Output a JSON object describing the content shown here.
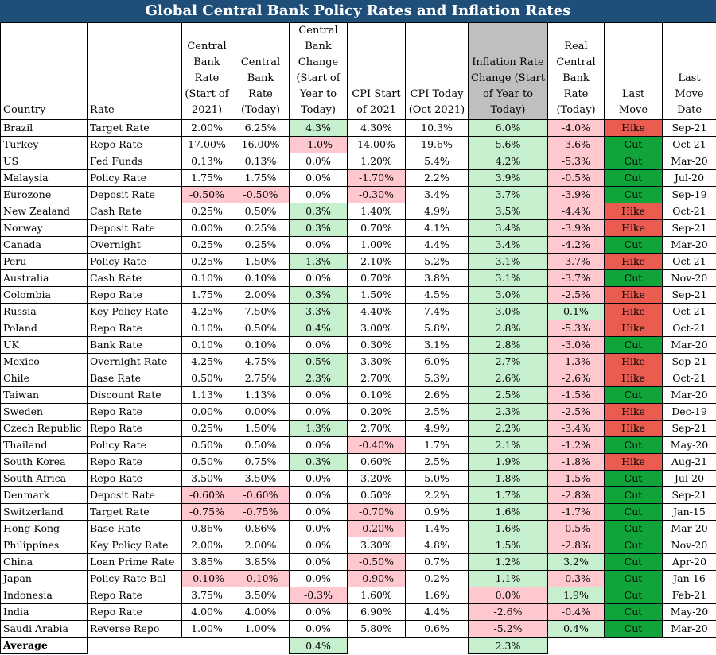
{
  "title": "Global Central Bank Policy Rates and Inflation Rates",
  "headers": [
    "Country",
    "Rate",
    "Central Bank Rate (Start of 2021)",
    "Central Bank Rate (Today)",
    "Central Bank Change (Start of Year to Today)",
    "CPI Start of 2021",
    "CPI Today (Oct 2021)",
    "Inflation Rate Change (Start of Year to Today)",
    "Real Central Bank Rate (Today)",
    "Last Move",
    "Last Move Date"
  ],
  "rows": [
    [
      "Brazil",
      "Target Rate",
      "2.00%",
      "6.25%",
      "4.3%",
      "4.30%",
      "10.3%",
      "6.0%",
      "-4.0%",
      "Hike",
      "Sep-21"
    ],
    [
      "Turkey",
      "Repo Rate",
      "17.00%",
      "16.00%",
      "-1.0%",
      "14.00%",
      "19.6%",
      "5.6%",
      "-3.6%",
      "Cut",
      "Oct-21"
    ],
    [
      "US",
      "Fed Funds",
      "0.13%",
      "0.13%",
      "0.0%",
      "1.20%",
      "5.4%",
      "4.2%",
      "-5.3%",
      "Cut",
      "Mar-20"
    ],
    [
      "Malaysia",
      "Policy Rate",
      "1.75%",
      "1.75%",
      "0.0%",
      "-1.70%",
      "2.2%",
      "3.9%",
      "-0.5%",
      "Cut",
      "Jul-20"
    ],
    [
      "Eurozone",
      "Deposit Rate",
      "-0.50%",
      "-0.50%",
      "0.0%",
      "-0.30%",
      "3.4%",
      "3.7%",
      "-3.9%",
      "Cut",
      "Sep-19"
    ],
    [
      "New Zealand",
      "Cash Rate",
      "0.25%",
      "0.50%",
      "0.3%",
      "1.40%",
      "4.9%",
      "3.5%",
      "-4.4%",
      "Hike",
      "Oct-21"
    ],
    [
      "Norway",
      "Deposit Rate",
      "0.00%",
      "0.25%",
      "0.3%",
      "0.70%",
      "4.1%",
      "3.4%",
      "-3.9%",
      "Hike",
      "Sep-21"
    ],
    [
      "Canada",
      "Overnight",
      "0.25%",
      "0.25%",
      "0.0%",
      "1.00%",
      "4.4%",
      "3.4%",
      "-4.2%",
      "Cut",
      "Mar-20"
    ],
    [
      "Peru",
      "Policy Rate",
      "0.25%",
      "1.50%",
      "1.3%",
      "2.10%",
      "5.2%",
      "3.1%",
      "-3.7%",
      "Hike",
      "Oct-21"
    ],
    [
      "Australia",
      "Cash Rate",
      "0.10%",
      "0.10%",
      "0.0%",
      "0.70%",
      "3.8%",
      "3.1%",
      "-3.7%",
      "Cut",
      "Nov-20"
    ],
    [
      "Colombia",
      "Repo Rate",
      "1.75%",
      "2.00%",
      "0.3%",
      "1.50%",
      "4.5%",
      "3.0%",
      "-2.5%",
      "Hike",
      "Sep-21"
    ],
    [
      "Russia",
      "Key Policy Rate",
      "4.25%",
      "7.50%",
      "3.3%",
      "4.40%",
      "7.4%",
      "3.0%",
      "0.1%",
      "Hike",
      "Oct-21"
    ],
    [
      "Poland",
      "Repo Rate",
      "0.10%",
      "0.50%",
      "0.4%",
      "3.00%",
      "5.8%",
      "2.8%",
      "-5.3%",
      "Hike",
      "Oct-21"
    ],
    [
      "UK",
      "Bank Rate",
      "0.10%",
      "0.10%",
      "0.0%",
      "0.30%",
      "3.1%",
      "2.8%",
      "-3.0%",
      "Cut",
      "Mar-20"
    ],
    [
      "Mexico",
      "Overnight Rate",
      "4.25%",
      "4.75%",
      "0.5%",
      "3.30%",
      "6.0%",
      "2.7%",
      "-1.3%",
      "Hike",
      "Sep-21"
    ],
    [
      "Chile",
      "Base Rate",
      "0.50%",
      "2.75%",
      "2.3%",
      "2.70%",
      "5.3%",
      "2.6%",
      "-2.6%",
      "Hike",
      "Oct-21"
    ],
    [
      "Taiwan",
      "Discount Rate",
      "1.13%",
      "1.13%",
      "0.0%",
      "0.10%",
      "2.6%",
      "2.5%",
      "-1.5%",
      "Cut",
      "Mar-20"
    ],
    [
      "Sweden",
      "Repo Rate",
      "0.00%",
      "0.00%",
      "0.0%",
      "0.20%",
      "2.5%",
      "2.3%",
      "-2.5%",
      "Hike",
      "Dec-19"
    ],
    [
      "Czech Republic",
      "Repo Rate",
      "0.25%",
      "1.50%",
      "1.3%",
      "2.70%",
      "4.9%",
      "2.2%",
      "-3.4%",
      "Hike",
      "Sep-21"
    ],
    [
      "Thailand",
      "Policy Rate",
      "0.50%",
      "0.50%",
      "0.0%",
      "-0.40%",
      "1.7%",
      "2.1%",
      "-1.2%",
      "Cut",
      "May-20"
    ],
    [
      "South Korea",
      "Repo Rate",
      "0.50%",
      "0.75%",
      "0.3%",
      "0.60%",
      "2.5%",
      "1.9%",
      "-1.8%",
      "Hike",
      "Aug-21"
    ],
    [
      "South Africa",
      "Repo Rate",
      "3.50%",
      "3.50%",
      "0.0%",
      "3.20%",
      "5.0%",
      "1.8%",
      "-1.5%",
      "Cut",
      "Jul-20"
    ],
    [
      "Denmark",
      "Deposit Rate",
      "-0.60%",
      "-0.60%",
      "0.0%",
      "0.50%",
      "2.2%",
      "1.7%",
      "-2.8%",
      "Cut",
      "Sep-21"
    ],
    [
      "Switzerland",
      "Target Rate",
      "-0.75%",
      "-0.75%",
      "0.0%",
      "-0.70%",
      "0.9%",
      "1.6%",
      "-1.7%",
      "Cut",
      "Jan-15"
    ],
    [
      "Hong Kong",
      "Base Rate",
      "0.86%",
      "0.86%",
      "0.0%",
      "-0.20%",
      "1.4%",
      "1.6%",
      "-0.5%",
      "Cut",
      "Mar-20"
    ],
    [
      "Philippines",
      "Key Policy Rate",
      "2.00%",
      "2.00%",
      "0.0%",
      "3.30%",
      "4.8%",
      "1.5%",
      "-2.8%",
      "Cut",
      "Nov-20"
    ],
    [
      "China",
      "Loan Prime Rate",
      "3.85%",
      "3.85%",
      "0.0%",
      "-0.50%",
      "0.7%",
      "1.2%",
      "3.2%",
      "Cut",
      "Apr-20"
    ],
    [
      "Japan",
      "Policy Rate Bal",
      "-0.10%",
      "-0.10%",
      "0.0%",
      "-0.90%",
      "0.2%",
      "1.1%",
      "-0.3%",
      "Cut",
      "Jan-16"
    ],
    [
      "Indonesia",
      "Repo Rate",
      "3.75%",
      "3.50%",
      "-0.3%",
      "1.60%",
      "1.6%",
      "0.0%",
      "1.9%",
      "Cut",
      "Feb-21"
    ],
    [
      "India",
      "Repo Rate",
      "4.00%",
      "4.00%",
      "0.0%",
      "6.90%",
      "4.4%",
      "-2.6%",
      "-0.4%",
      "Cut",
      "May-20"
    ],
    [
      "Saudi Arabia",
      "Reverse Repo",
      "1.00%",
      "1.00%",
      "0.0%",
      "5.80%",
      "0.6%",
      "-5.2%",
      "0.4%",
      "Cut",
      "Mar-20"
    ]
  ],
  "average": {
    "label": "Average",
    "cb_change": "0.4%",
    "inflation_change": "2.3%"
  },
  "colors": {
    "title_bg": "#1f4e79",
    "positive_fill": "#c6efce",
    "negative_fill": "#ffc7ce",
    "hike_fill": "#ea5b50",
    "cut_fill": "#11a43a",
    "header_highlight": "#bfbfbf"
  }
}
